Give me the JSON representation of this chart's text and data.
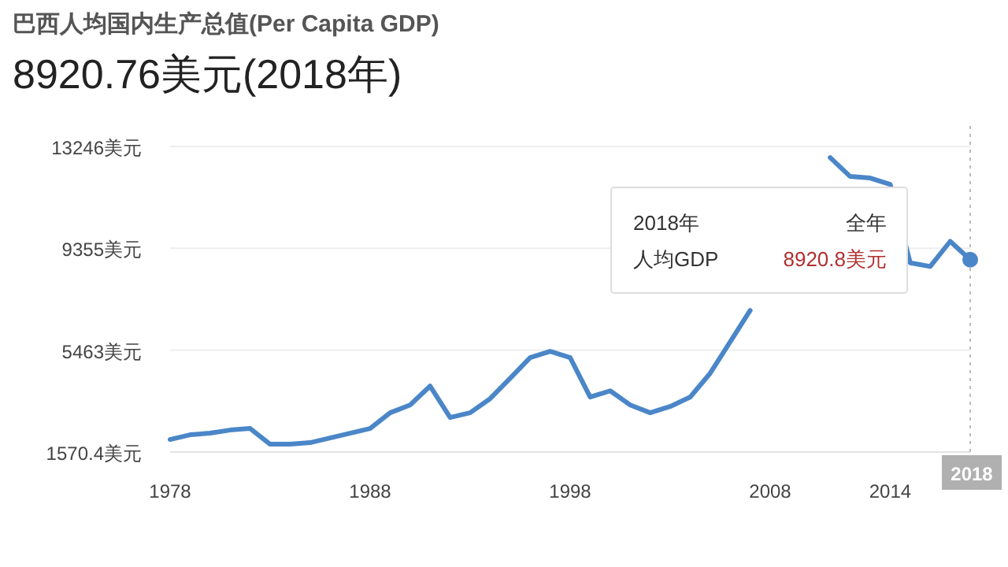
{
  "chart_data": {
    "type": "line",
    "title": "巴西人均国内生产总值(Per Capita GDP)",
    "subtitle": "8920.76美元(2018年)",
    "x": [
      1978,
      1979,
      1980,
      1981,
      1982,
      1983,
      1984,
      1985,
      1986,
      1987,
      1988,
      1989,
      1990,
      1991,
      1992,
      1993,
      1994,
      1995,
      1996,
      1997,
      1998,
      1999,
      2000,
      2001,
      2002,
      2003,
      2004,
      2005,
      2006,
      2007,
      2008,
      2009,
      2010,
      2011,
      2012,
      2013,
      2014,
      2015,
      2016,
      2017,
      2018
    ],
    "series": [
      {
        "color": "#4a86c8",
        "values": [
          2050,
          2230,
          2290,
          2410,
          2470,
          1870,
          1870,
          1930,
          2110,
          2290,
          2470,
          3070,
          3370,
          4090,
          2890,
          3070,
          3610,
          4390,
          5180,
          5420,
          5180,
          3670,
          3910,
          3370,
          3070,
          3310,
          3670,
          4580,
          5780,
          6980,
          null,
          null,
          null,
          12820,
          12100,
          12040,
          11800,
          8800,
          8660,
          9620,
          8920
        ]
      }
    ],
    "xlim": [
      1978,
      2018
    ],
    "xticks": [
      1978,
      1988,
      1998,
      2008,
      2014
    ],
    "ylim": [
      1570.4,
      13246
    ],
    "yticks": [
      {
        "value": 1570.4,
        "label": "1570.4美元"
      },
      {
        "value": 5463,
        "label": "5463美元"
      },
      {
        "value": 9355,
        "label": "9355美元"
      },
      {
        "value": 13246,
        "label": "13246美元"
      }
    ],
    "grid": "y",
    "marker": "none",
    "line_style": "solid",
    "ref_lines": [
      {
        "axis": "x",
        "value": 2018,
        "label": "2018",
        "line_style": "dotted",
        "color": "#bbbbbb"
      }
    ],
    "annotations": [
      "2018年",
      "全年",
      "人均GDP",
      "8920.8美元"
    ]
  }
}
